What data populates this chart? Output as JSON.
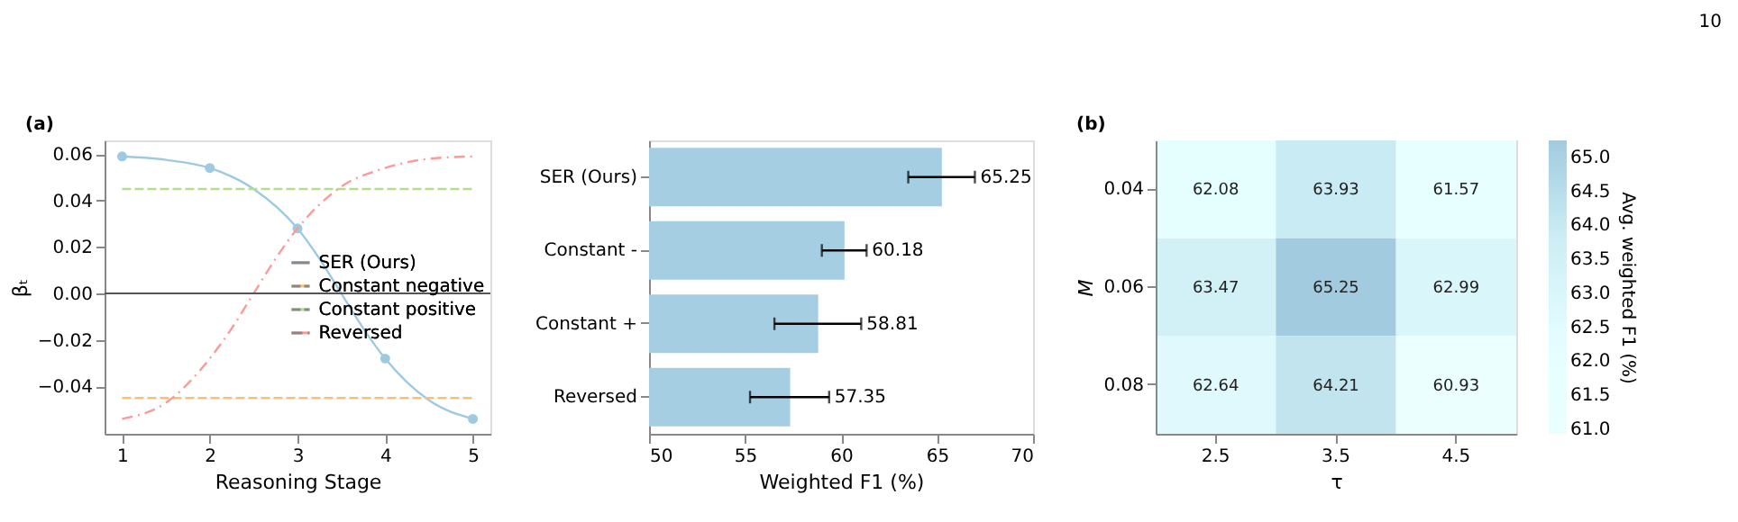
{
  "chart_data": [
    {
      "type": "line",
      "title": "(a)",
      "xlabel": "Reasoning Stage",
      "ylabel": "βₜ",
      "xlim": [
        0.8,
        5.2
      ],
      "ylim": [
        -0.0604,
        0.0659
      ],
      "xticks": [
        1,
        2,
        3,
        4,
        5
      ],
      "yticks": [
        {
          "value": -0.04,
          "label": "−0.04"
        },
        {
          "value": -0.02,
          "label": "−0.02"
        },
        {
          "value": 0,
          "label": "0.00"
        },
        {
          "value": 0.02,
          "label": "0.02"
        },
        {
          "value": 0.04,
          "label": "0.04"
        },
        {
          "value": 0.06,
          "label": "0.06"
        }
      ],
      "grid": false,
      "legend": "right",
      "ref_lines": [
        {
          "axis": "y",
          "value": 0,
          "color": "#555555"
        }
      ],
      "series": [
        {
          "name": "SER (Ours)",
          "type": "line",
          "color": "#9ecae1",
          "line_style": "solid",
          "marker": "none",
          "x": [
            1,
            1.5,
            2,
            2.5,
            3,
            3.25,
            3.5,
            3.75,
            4,
            4.5,
            5
          ],
          "values": [
            0.059,
            0.0575,
            0.054,
            0.045,
            0.028,
            0.015,
            0.0,
            -0.015,
            -0.028,
            -0.046,
            -0.054
          ]
        },
        {
          "type": "scatter",
          "color": "#9ecae1",
          "marker": "circle",
          "x": [
            1,
            2,
            3,
            4,
            5
          ],
          "values": [
            0.059,
            0.054,
            0.028,
            -0.028,
            -0.054
          ]
        },
        {
          "name": "Constant negative",
          "type": "line",
          "color": "#fdbf6f",
          "line_style": "dashed",
          "marker": "none",
          "x": [
            1,
            5
          ],
          "values": [
            -0.045,
            -0.045
          ]
        },
        {
          "name": "Constant positive",
          "type": "line",
          "color": "#b2df8a",
          "line_style": "dashed",
          "marker": "none",
          "x": [
            1,
            5
          ],
          "values": [
            0.045,
            0.045
          ]
        },
        {
          "name": "Reversed",
          "type": "line",
          "color": "#fb9a99",
          "line_style": "dashdot",
          "marker": "none",
          "x": [
            1,
            1.5,
            2,
            2.25,
            2.5,
            2.75,
            3,
            3.5,
            4,
            4.5,
            5
          ],
          "values": [
            -0.054,
            -0.047,
            -0.028,
            -0.015,
            0.0,
            0.015,
            0.028,
            0.046,
            0.054,
            0.058,
            0.059
          ]
        }
      ]
    },
    {
      "type": "bar",
      "orientation": "horizontal",
      "xlabel": "Weighted F1 (%)",
      "categories": [
        "SER (Ours)",
        "Constant -",
        "Constant +",
        "Reversed"
      ],
      "values": [
        65.25,
        60.18,
        58.81,
        57.35
      ],
      "color": "#a6cee3",
      "errors": [
        [
          63.5,
          66.97
        ],
        [
          59.0,
          61.33
        ],
        [
          56.53,
          61.05
        ],
        [
          55.26,
          59.38
        ]
      ],
      "xlim": [
        50,
        70
      ],
      "xticks": [
        50,
        55,
        60,
        65,
        70
      ],
      "data_labels": true,
      "grid": false
    },
    {
      "type": "heatmap",
      "title": "(b)",
      "xlabel": "τ",
      "ylabel": "M",
      "clabel": "Avg. weighted F1 (%)",
      "categories": [
        "2.5",
        "3.5",
        "4.5"
      ],
      "y_categories": [
        "0.04",
        "0.06",
        "0.08"
      ],
      "cells": [
        [
          62.08,
          63.93,
          61.57
        ],
        [
          63.47,
          65.25,
          62.99
        ],
        [
          62.64,
          64.21,
          60.93
        ]
      ],
      "clim": [
        60.93,
        65.25
      ],
      "cticks": [
        {
          "value": 61,
          "label": "61.0"
        },
        {
          "value": 61.5,
          "label": "61.5"
        },
        {
          "value": 62,
          "label": "62.0"
        },
        {
          "value": 62.5,
          "label": "62.5"
        },
        {
          "value": 63,
          "label": "63.0"
        },
        {
          "value": 63.5,
          "label": "63.5"
        },
        {
          "value": 64,
          "label": "64.0"
        },
        {
          "value": 64.5,
          "label": "64.5"
        },
        {
          "value": 65,
          "label": "65.0"
        }
      ],
      "data_labels": true,
      "annotations": [
        "10"
      ]
    }
  ]
}
